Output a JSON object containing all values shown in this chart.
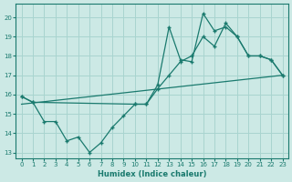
{
  "xlabel": "Humidex (Indice chaleur)",
  "xlim": [
    -0.5,
    23.5
  ],
  "ylim": [
    12.7,
    20.7
  ],
  "yticks": [
    13,
    14,
    15,
    16,
    17,
    18,
    19,
    20
  ],
  "xticks": [
    0,
    1,
    2,
    3,
    4,
    5,
    6,
    7,
    8,
    9,
    10,
    11,
    12,
    13,
    14,
    15,
    16,
    17,
    18,
    19,
    20,
    21,
    22,
    23
  ],
  "background_color": "#cce9e5",
  "grid_color": "#a8d4cf",
  "line_color": "#1a7a6e",
  "line1_x": [
    0,
    1,
    2,
    3,
    4,
    5,
    6,
    7,
    8,
    9,
    10,
    11,
    12,
    13,
    14,
    15,
    16,
    17,
    18,
    19,
    20,
    21,
    22,
    23
  ],
  "line1_y": [
    15.9,
    15.6,
    14.6,
    14.6,
    13.6,
    13.8,
    13.0,
    13.5,
    14.3,
    14.9,
    15.5,
    15.5,
    16.5,
    19.5,
    17.8,
    17.7,
    20.2,
    19.3,
    19.5,
    19.0,
    18.0,
    18.0,
    17.8,
    17.0
  ],
  "line2_x": [
    0,
    1,
    10,
    11,
    12,
    13,
    14,
    15,
    16,
    17,
    18,
    19,
    20,
    21,
    22,
    23
  ],
  "line2_y": [
    15.9,
    15.6,
    15.5,
    15.5,
    16.3,
    17.0,
    17.7,
    18.0,
    19.0,
    18.5,
    19.7,
    19.0,
    18.0,
    18.0,
    17.8,
    17.0
  ],
  "line3_x": [
    0,
    23
  ],
  "line3_y": [
    15.5,
    17.0
  ]
}
